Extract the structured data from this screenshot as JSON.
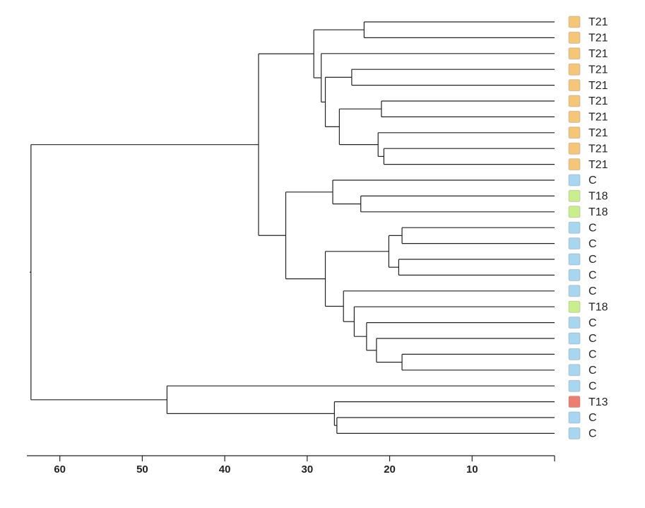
{
  "chart_data": {
    "type": "dendrogram",
    "xlim": [
      64,
      0
    ],
    "xticks": [
      60,
      50,
      40,
      30,
      20,
      10
    ],
    "tree": {
      "height": 63.5,
      "children": [
        {
          "height": 35.9,
          "children": [
            {
              "height": 29.2,
              "children": [
                {
                  "height": 23.1,
                  "children": [
                    {
                      "label": "T21",
                      "color": "#f5c675"
                    },
                    {
                      "label": "T21",
                      "color": "#f5c675"
                    }
                  ]
                },
                {
                  "height": 28.3,
                  "children": [
                    {
                      "label": "T21",
                      "color": "#f5c675"
                    },
                    {
                      "height": 27.8,
                      "children": [
                        {
                          "height": 24.6,
                          "children": [
                            {
                              "label": "T21",
                              "color": "#f5c675"
                            },
                            {
                              "label": "T21",
                              "color": "#f5c675"
                            }
                          ]
                        },
                        {
                          "height": 26.1,
                          "children": [
                            {
                              "height": 21.0,
                              "children": [
                                {
                                  "label": "T21",
                                  "color": "#f5c675"
                                },
                                {
                                  "label": "T21",
                                  "color": "#f5c675"
                                }
                              ]
                            },
                            {
                              "height": 21.4,
                              "children": [
                                {
                                  "label": "T21",
                                  "color": "#f5c675"
                                },
                                {
                                  "height": 20.7,
                                  "children": [
                                    {
                                      "label": "T21",
                                      "color": "#f5c675"
                                    },
                                    {
                                      "label": "T21",
                                      "color": "#f5c675"
                                    }
                                  ]
                                }
                              ]
                            }
                          ]
                        }
                      ]
                    }
                  ]
                }
              ]
            },
            {
              "height": 32.6,
              "children": [
                {
                  "height": 26.9,
                  "children": [
                    {
                      "label": "C",
                      "color": "#a6d6f0"
                    },
                    {
                      "height": 23.5,
                      "children": [
                        {
                          "label": "T18",
                          "color": "#c9ee8c"
                        },
                        {
                          "label": "T18",
                          "color": "#c9ee8c"
                        }
                      ]
                    }
                  ]
                },
                {
                  "height": 27.8,
                  "children": [
                    {
                      "height": 20.1,
                      "children": [
                        {
                          "height": 18.5,
                          "children": [
                            {
                              "label": "C",
                              "color": "#a6d6f0"
                            },
                            {
                              "label": "C",
                              "color": "#a6d6f0"
                            }
                          ]
                        },
                        {
                          "height": 18.9,
                          "children": [
                            {
                              "label": "C",
                              "color": "#a6d6f0"
                            },
                            {
                              "label": "C",
                              "color": "#a6d6f0"
                            }
                          ]
                        }
                      ]
                    },
                    {
                      "height": 25.6,
                      "children": [
                        {
                          "label": "C",
                          "color": "#a6d6f0"
                        },
                        {
                          "height": 24.3,
                          "children": [
                            {
                              "label": "T18",
                              "color": "#c9ee8c"
                            },
                            {
                              "height": 22.8,
                              "children": [
                                {
                                  "label": "C",
                                  "color": "#a6d6f0"
                                },
                                {
                                  "height": 21.6,
                                  "children": [
                                    {
                                      "label": "C",
                                      "color": "#a6d6f0"
                                    },
                                    {
                                      "height": 18.5,
                                      "children": [
                                        {
                                          "label": "C",
                                          "color": "#a6d6f0"
                                        },
                                        {
                                          "label": "C",
                                          "color": "#a6d6f0"
                                        }
                                      ]
                                    }
                                  ]
                                }
                              ]
                            }
                          ]
                        }
                      ]
                    }
                  ]
                }
              ]
            }
          ]
        },
        {
          "height": 47.0,
          "children": [
            {
              "label": "C",
              "color": "#a6d6f0"
            },
            {
              "height": 26.7,
              "children": [
                {
                  "label": "T13",
                  "color": "#ee7d70"
                },
                {
                  "height": 26.4,
                  "children": [
                    {
                      "label": "C",
                      "color": "#a6d6f0"
                    },
                    {
                      "label": "C",
                      "color": "#a6d6f0"
                    }
                  ]
                }
              ]
            }
          ]
        }
      ]
    }
  }
}
